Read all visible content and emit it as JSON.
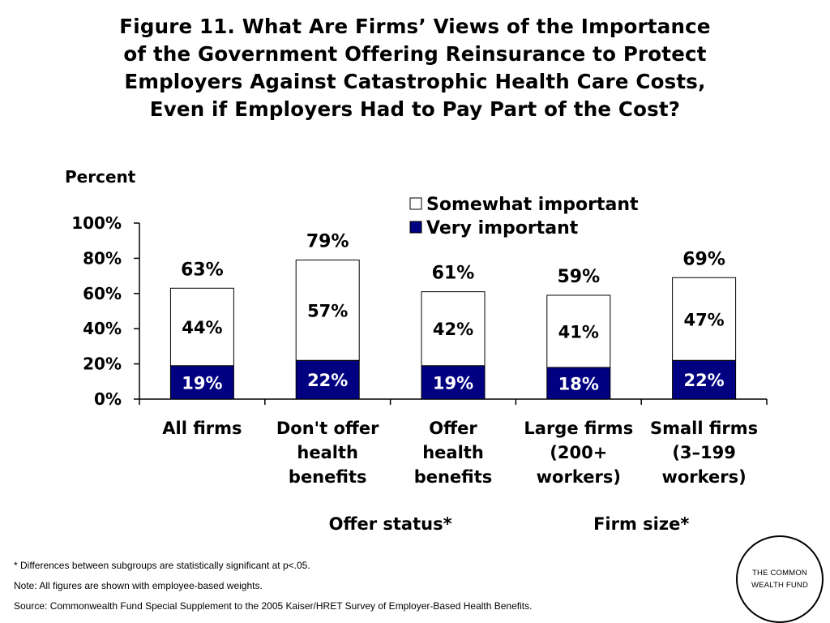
{
  "chart_data": {
    "type": "bar",
    "stacked": true,
    "title_lines": [
      "Figure 11. What Are Firms’ Views of the Importance",
      "of the Government Offering Reinsurance to Protect",
      "Employers Against Catastrophic Health Care Costs,",
      "Even if Employers Had to Pay Part of the Cost?"
    ],
    "ylabel": "Percent",
    "ylim": [
      0,
      100
    ],
    "yticks": [
      "0%",
      "20%",
      "40%",
      "60%",
      "80%",
      "100%"
    ],
    "categories": [
      [
        "All firms"
      ],
      [
        "Don't offer",
        "health",
        "benefits"
      ],
      [
        "Offer",
        "health",
        "benefits"
      ],
      [
        "Large firms",
        "(200+",
        "workers)"
      ],
      [
        "Small firms",
        "(3–199",
        "workers)"
      ]
    ],
    "groups": [
      {
        "label": "Offer status*",
        "categories": [
          1,
          2
        ]
      },
      {
        "label": "Firm size*",
        "categories": [
          3,
          4
        ]
      }
    ],
    "series": [
      {
        "name": "Very important",
        "color": "#000080",
        "values": [
          19,
          22,
          19,
          18,
          22
        ],
        "labels": [
          "19%",
          "22%",
          "19%",
          "18%",
          "22%"
        ]
      },
      {
        "name": "Somewhat important",
        "color": "#ffffff",
        "values": [
          44,
          57,
          42,
          41,
          47
        ],
        "labels": [
          "44%",
          "57%",
          "42%",
          "41%",
          "47%"
        ]
      }
    ],
    "totals": [
      63,
      79,
      61,
      59,
      69
    ],
    "total_labels": [
      "63%",
      "79%",
      "61%",
      "59%",
      "69%"
    ],
    "legend": {
      "position": "top-right",
      "entries": [
        {
          "label": "Somewhat important",
          "color": "#ffffff"
        },
        {
          "label": "Very important",
          "color": "#000080"
        }
      ]
    },
    "grid": false
  },
  "footnotes": {
    "significance": "* Differences between subgroups are statistically significant at p<.05.",
    "note": "Note: All figures are shown with employee-based weights.",
    "source": "Source: Commonwealth Fund Special Supplement to the 2005 Kaiser/HRET Survey of Employer-Based Health Benefits."
  },
  "logo": {
    "text": "THE COMMONWEALTH FUND"
  }
}
